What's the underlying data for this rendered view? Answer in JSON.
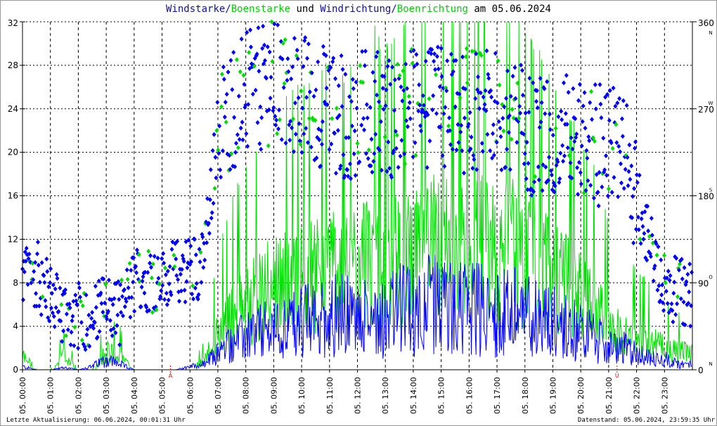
{
  "title": {
    "part1": "Windstarke",
    "sep1": "/",
    "part2": "Boenstarke",
    "mid": " und ",
    "part3": "Windrichtung",
    "sep2": "/",
    "part4": "Boenrichtung",
    "end": " am 05.06.2024"
  },
  "footer": {
    "left": "Letzte Aktualisierung: 06.06.2024, 00:01:31 Uhr",
    "right": "Datenstand: 05.06.2024, 23:59:35 Uhr"
  },
  "colors": {
    "speed": "#0000ff",
    "gust": "#00e000",
    "grid": "#000000",
    "marker": "#ff0000"
  },
  "chart_data": {
    "type": "line",
    "title": "Windstarke/Boenstarke und Windrichtung/Boenrichtung am 05.06.2024",
    "xlabel": "",
    "ylabel": "",
    "y2label": "",
    "ylim": [
      0,
      32
    ],
    "y2lim": [
      0,
      360
    ],
    "yticks": [
      "0",
      "4",
      "8",
      "12",
      "16",
      "20",
      "24",
      "28",
      "32"
    ],
    "y2ticks": [
      "0",
      "90",
      "180",
      "270",
      "360"
    ],
    "compass": [
      "N",
      "O",
      "S",
      "W",
      "N"
    ],
    "xticks": [
      "05. 00:00",
      "05. 01:00",
      "05. 02:00",
      "05. 03:00",
      "05. 04:00",
      "05. 05:00",
      "05. 06:00",
      "05. 07:00",
      "05. 08:00",
      "05. 09:00",
      "05. 10:00",
      "05. 11:00",
      "05. 12:00",
      "05. 13:00",
      "05. 14:00",
      "05. 15:00",
      "05. 16:00",
      "05. 17:00",
      "05. 18:00",
      "05. 19:00",
      "05. 20:00",
      "05. 21:00",
      "05. 22:00",
      "05. 23:00"
    ],
    "markers": [
      {
        "label": "A",
        "hour": 5.3
      },
      {
        "label": "U",
        "hour": 21.3
      }
    ],
    "x_hours_step": 0.5,
    "series": [
      {
        "name": "Windstarke",
        "values": [
          0.3,
          0,
          0,
          0.2,
          0,
          0.3,
          1,
          0.5,
          0,
          0,
          0,
          0,
          0.3,
          0.5,
          1.5,
          2.5,
          3,
          3.5,
          3.5,
          4,
          4.5,
          4.5,
          5,
          5,
          4.5,
          5,
          5,
          5.5,
          5.5,
          6,
          6,
          5.5,
          6,
          5.5,
          5,
          5.5,
          5,
          5,
          4.5,
          4,
          3.5,
          3,
          2,
          2,
          1.5,
          1,
          1,
          0.5
        ]
      },
      {
        "name": "Boenstarke",
        "values": [
          1.5,
          0,
          0,
          1.5,
          0,
          0,
          2,
          1.5,
          0,
          0,
          0,
          0,
          0,
          1,
          4,
          6,
          7,
          8,
          9,
          9.5,
          10,
          10,
          11,
          10,
          11,
          12,
          11,
          12,
          12,
          13,
          14,
          12,
          13,
          13,
          12,
          13,
          12,
          11,
          10,
          9,
          8,
          7,
          5,
          4,
          3.5,
          3,
          2.5,
          2
        ]
      },
      {
        "name": "Windrichtung",
        "values": [
          95,
          100,
          75,
          60,
          55,
          55,
          65,
          60,
          90,
          95,
          90,
          100,
          105,
          110,
          250,
          270,
          285,
          290,
          300,
          280,
          285,
          275,
          270,
          260,
          265,
          270,
          260,
          265,
          270,
          265,
          275,
          260,
          270,
          265,
          265,
          260,
          250,
          240,
          235,
          240,
          235,
          230,
          235,
          225,
          180,
          130,
          90,
          80
        ]
      }
    ],
    "grid": true
  }
}
